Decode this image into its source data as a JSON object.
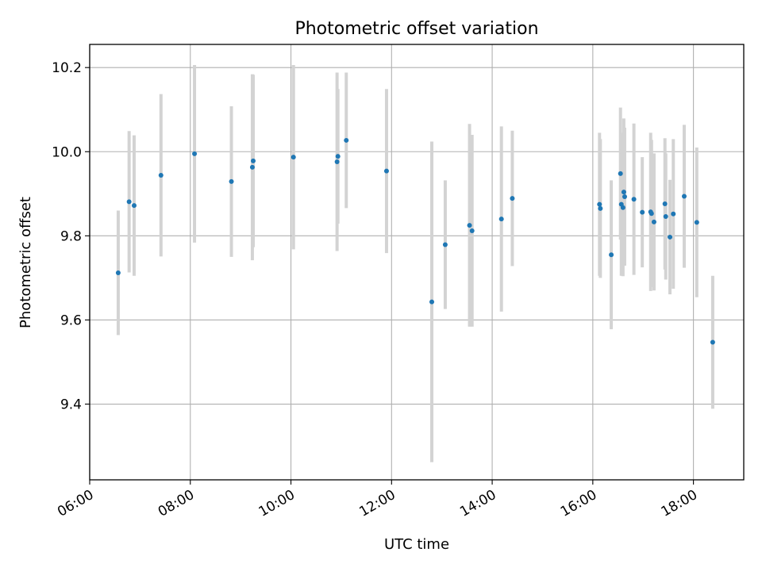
{
  "chart_data": {
    "type": "scatter",
    "title": "Photometric offset variation",
    "xlabel": "UTC time",
    "ylabel": "Photometric offset",
    "xlim": [
      "06:00",
      "19:00"
    ],
    "ylim": [
      9.22,
      10.255
    ],
    "grid": true,
    "x_ticks": [
      "06:00",
      "08:00",
      "10:00",
      "12:00",
      "14:00",
      "16:00",
      "18:00"
    ],
    "y_ticks": [
      "9.4",
      "9.6",
      "9.8",
      "10.0",
      "10.2"
    ],
    "colors": {
      "point": "#1f77b4",
      "errorbar": "#d3d3d3",
      "grid": "#b0b0b0"
    },
    "points": [
      {
        "t": "06:34",
        "y": 9.712,
        "err": 0.148
      },
      {
        "t": "06:47",
        "y": 9.881,
        "err": 0.168
      },
      {
        "t": "06:53",
        "y": 9.872,
        "err": 0.167
      },
      {
        "t": "07:25",
        "y": 9.944,
        "err": 0.193
      },
      {
        "t": "08:05",
        "y": 9.995,
        "err": 0.211
      },
      {
        "t": "08:49",
        "y": 9.929,
        "err": 0.179
      },
      {
        "t": "09:14",
        "y": 9.963,
        "err": 0.221
      },
      {
        "t": "09:15",
        "y": 9.978,
        "err": 0.205
      },
      {
        "t": "10:03",
        "y": 9.987,
        "err": 0.219
      },
      {
        "t": "10:55",
        "y": 9.976,
        "err": 0.212
      },
      {
        "t": "10:56",
        "y": 9.989,
        "err": 0.16
      },
      {
        "t": "11:06",
        "y": 10.027,
        "err": 0.161
      },
      {
        "t": "11:54",
        "y": 9.954,
        "err": 0.195
      },
      {
        "t": "12:48",
        "y": 9.643,
        "err": 0.381
      },
      {
        "t": "13:04",
        "y": 9.779,
        "err": 0.153
      },
      {
        "t": "13:33",
        "y": 9.825,
        "err": 0.241
      },
      {
        "t": "13:36",
        "y": 9.812,
        "err": 0.228
      },
      {
        "t": "14:11",
        "y": 9.84,
        "err": 0.22
      },
      {
        "t": "14:24",
        "y": 9.889,
        "err": 0.161
      },
      {
        "t": "16:08",
        "y": 9.875,
        "err": 0.17
      },
      {
        "t": "16:09",
        "y": 9.865,
        "err": 0.165
      },
      {
        "t": "16:22",
        "y": 9.755,
        "err": 0.177
      },
      {
        "t": "16:33",
        "y": 9.948,
        "err": 0.157
      },
      {
        "t": "16:34",
        "y": 9.875,
        "err": 0.17
      },
      {
        "t": "16:36",
        "y": 9.867,
        "err": 0.163
      },
      {
        "t": "16:37",
        "y": 9.904,
        "err": 0.175
      },
      {
        "t": "16:38",
        "y": 9.893,
        "err": 0.164
      },
      {
        "t": "16:49",
        "y": 9.887,
        "err": 0.18
      },
      {
        "t": "16:59",
        "y": 9.856,
        "err": 0.131
      },
      {
        "t": "17:09",
        "y": 9.857,
        "err": 0.188
      },
      {
        "t": "17:10",
        "y": 9.853,
        "err": 0.175
      },
      {
        "t": "17:13",
        "y": 9.833,
        "err": 0.163
      },
      {
        "t": "17:26",
        "y": 9.876,
        "err": 0.156
      },
      {
        "t": "17:27",
        "y": 9.846,
        "err": 0.15
      },
      {
        "t": "17:32",
        "y": 9.797,
        "err": 0.136
      },
      {
        "t": "17:36",
        "y": 9.852,
        "err": 0.178
      },
      {
        "t": "17:49",
        "y": 9.894,
        "err": 0.17
      },
      {
        "t": "18:04",
        "y": 9.832,
        "err": 0.178
      },
      {
        "t": "18:23",
        "y": 9.547,
        "err": 0.158
      }
    ]
  }
}
